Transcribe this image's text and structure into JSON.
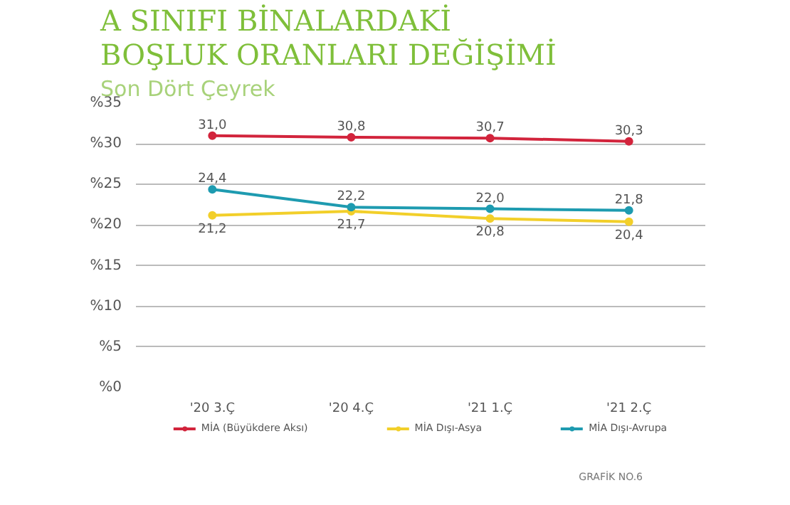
{
  "chart_data": {
    "type": "line",
    "title": "A SINIFI BİNALARDAKİ\nBOŞLUK ORANLARI DEĞİŞİMİ",
    "subtitle": "Son Dört Çeyrek",
    "categories": [
      "'20 3.Ç",
      "'20 4.Ç",
      "'21 1.Ç",
      "'21 2.Ç"
    ],
    "series": [
      {
        "name": "MİA (Büyükdere Aksı)",
        "color": "#d2243c",
        "values": [
          31.0,
          30.8,
          30.7,
          30.3
        ],
        "value_labels": [
          "31,0",
          "30,8",
          "30,7",
          "30,3"
        ]
      },
      {
        "name": "MİA Dışı-Asya",
        "color": "#f2cf2a",
        "values": [
          21.2,
          21.7,
          20.8,
          20.4
        ],
        "value_labels": [
          "21,2",
          "21,7",
          "20,8",
          "20,4"
        ]
      },
      {
        "name": "MİA Dışı-Avrupa",
        "color": "#1e9bb0",
        "values": [
          24.4,
          22.2,
          22.0,
          21.8
        ],
        "value_labels": [
          "24,4",
          "22,2",
          "22,0",
          "21,8"
        ]
      }
    ],
    "ylim": [
      0,
      35
    ],
    "yticks": [
      {
        "value": 0,
        "label": "%0"
      },
      {
        "value": 5,
        "label": "%5"
      },
      {
        "value": 10,
        "label": "%10"
      },
      {
        "value": 15,
        "label": "%15"
      },
      {
        "value": 20,
        "label": "%20"
      },
      {
        "value": 25,
        "label": "%25"
      },
      {
        "value": 30,
        "label": "%30"
      },
      {
        "value": 35,
        "label": "%35"
      }
    ],
    "grid": "y",
    "legend": "bottom",
    "marker": "circle",
    "line_style": "solid",
    "annotations": [
      "GRAFİK NO.6"
    ]
  }
}
